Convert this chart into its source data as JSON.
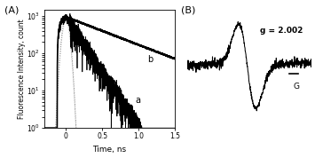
{
  "panel_A_title": "(A)",
  "panel_B_title": "(B)",
  "xlabel_A": "Time, ns",
  "ylabel_A": "Fluorescence Intensity, count",
  "xlim_A": [
    -0.3,
    1.5
  ],
  "ylim_A_log": [
    1,
    1500
  ],
  "label_a": "a",
  "label_b": "b",
  "g_value": "g = 2.002",
  "scale_bar_label": "G",
  "bg_color": "#ffffff",
  "line_color": "#000000"
}
